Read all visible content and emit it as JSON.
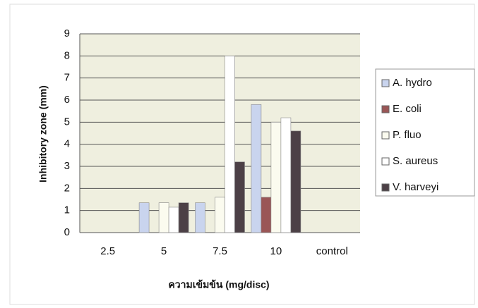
{
  "chart_data": {
    "type": "bar",
    "categories": [
      "2.5",
      "5",
      "7.5",
      "10",
      "control"
    ],
    "series": [
      {
        "name": "A. hydro",
        "color": "#c9d4ee",
        "values": [
          null,
          1.35,
          1.35,
          5.8,
          null
        ]
      },
      {
        "name": "E. coli",
        "color": "#9a5656",
        "values": [
          null,
          null,
          null,
          1.6,
          null
        ]
      },
      {
        "name": "P. fluo",
        "color": "#fbfbef",
        "values": [
          null,
          1.35,
          1.6,
          5.0,
          null
        ]
      },
      {
        "name": "S. aureus",
        "color": "#ffffff",
        "values": [
          null,
          1.15,
          8.0,
          5.2,
          null
        ]
      },
      {
        "name": "V. harveyi",
        "color": "#4c4046",
        "values": [
          null,
          1.35,
          3.2,
          4.6,
          null
        ]
      }
    ],
    "ylim": [
      0,
      9
    ],
    "yticks": [
      0,
      1,
      2,
      3,
      4,
      5,
      6,
      7,
      8,
      9
    ],
    "grid": true,
    "y_label": "Inhibitory zone (mm)",
    "x_label": "ความเข้มข้น (mg/disc)",
    "legend": "right"
  }
}
